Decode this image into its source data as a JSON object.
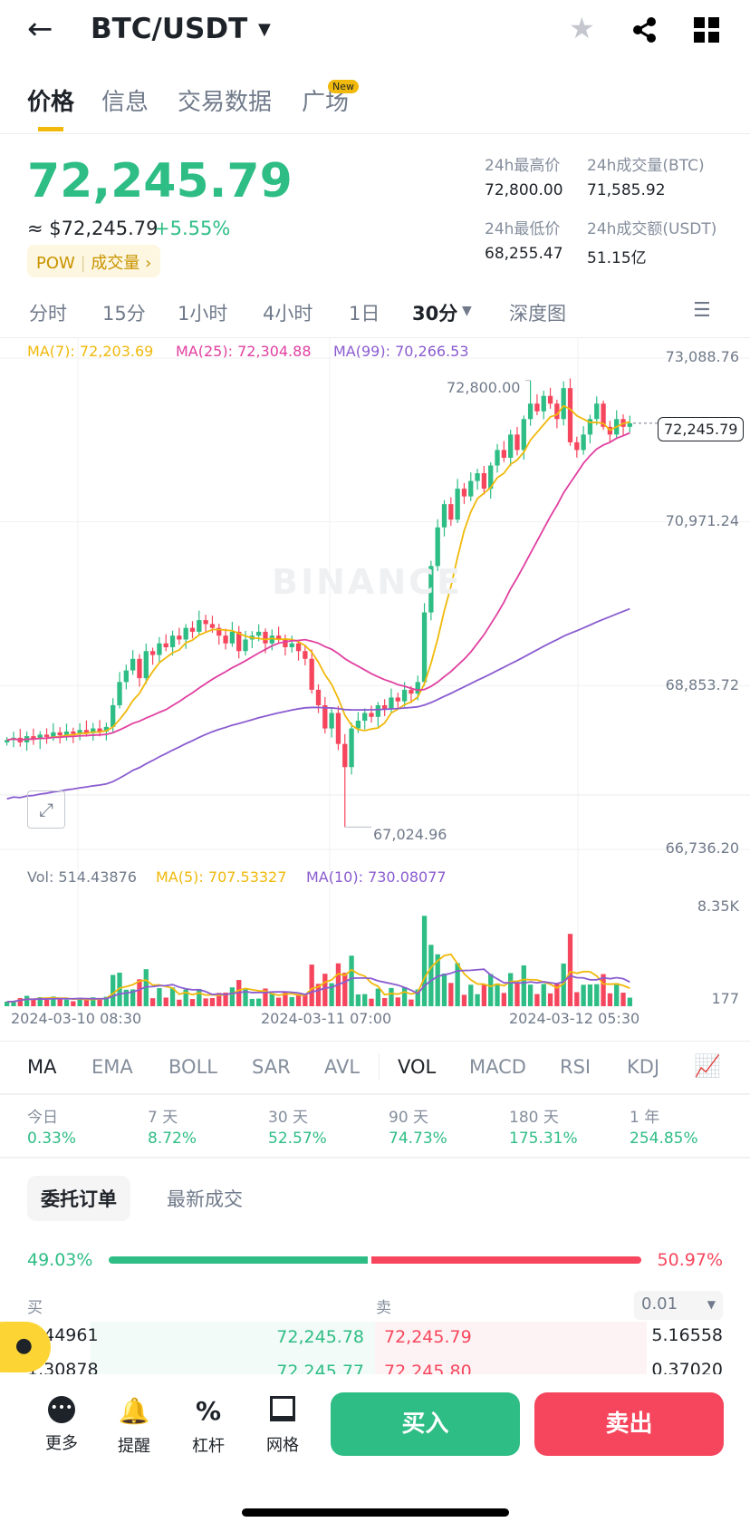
{
  "header": {
    "title": "BTC/USDT"
  },
  "tabs": [
    {
      "label": "价格"
    },
    {
      "label": "信息"
    },
    {
      "label": "交易数据"
    },
    {
      "label": "广场",
      "badge": "New"
    }
  ],
  "price": {
    "last": "72,245.79",
    "usd": "≈ $72,245.79",
    "change": "+5.55%",
    "tag1": "POW",
    "tag2": "成交量"
  },
  "stats": {
    "high_label": "24h最高价",
    "high": "72,800.00",
    "vol_btc_label": "24h成交量(BTC)",
    "vol_btc": "71,585.92",
    "low_label": "24h最低价",
    "low": "68,255.47",
    "vol_usdt_label": "24h成交额(USDT)",
    "vol_usdt": "51.15亿"
  },
  "timeframes": [
    "分时",
    "15分",
    "1小时",
    "4小时",
    "1日",
    "30分",
    "深度图"
  ],
  "ma_legend": {
    "ma7": "MA(7): 72,203.69",
    "ma25": "MA(25): 72,304.88",
    "ma99": "MA(99): 70,266.53"
  },
  "chart_data": {
    "type": "candlestick",
    "ylim": [
      66736.2,
      73088.76
    ],
    "yticks": [
      "73,088.76",
      "70,971.24",
      "68,853.72",
      "66,736.20"
    ],
    "last_price": "72,245.79",
    "high_label": "72,800.00",
    "low_label": "67,024.96",
    "closes": [
      68150,
      68180,
      68120,
      68200,
      68160,
      68220,
      68190,
      68250,
      68210,
      68260,
      68230,
      68280,
      68240,
      68300,
      68260,
      68320,
      68600,
      68900,
      69050,
      69200,
      68950,
      69300,
      69250,
      69400,
      69350,
      69500,
      69450,
      69600,
      69550,
      69700,
      69650,
      69600,
      69500,
      69400,
      69550,
      69300,
      69450,
      69500,
      69550,
      69400,
      69500,
      69450,
      69350,
      69400,
      69300,
      69200,
      68800,
      68600,
      68300,
      68500,
      68100,
      67800,
      68300,
      68400,
      68500,
      68450,
      68600,
      68550,
      68700,
      68650,
      68800,
      68750,
      68900,
      69800,
      70400,
      70900,
      71200,
      71000,
      71400,
      71300,
      71500,
      71600,
      71400,
      71700,
      71900,
      71800,
      72100,
      71900,
      72300,
      72500,
      72400,
      72600,
      72500,
      72300,
      72700,
      72000,
      71900,
      72100,
      72300,
      72500,
      72200,
      72100,
      72300,
      72200,
      72245.79
    ],
    "xticks": [
      "2024-03-10 08:30",
      "2024-03-11 07:00",
      "2024-03-12 05:30"
    ],
    "colors": {
      "up": "#2ebd85",
      "down": "#f6465d",
      "ma7": "#f0b90b",
      "ma25": "#e040a0",
      "ma99": "#8a5cd0"
    }
  },
  "volume": {
    "vol": "Vol: 514.43876",
    "ma5": "MA(5): 707.53327",
    "ma10": "MA(10): 730.08077",
    "ytop": "8.35K",
    "ybottom": "177"
  },
  "indicators": [
    "MA",
    "EMA",
    "BOLL",
    "SAR",
    "AVL",
    "VOL",
    "MACD",
    "RSI",
    "KDJ"
  ],
  "performance": [
    {
      "label": "今日",
      "value": "0.33%"
    },
    {
      "label": "7 天",
      "value": "8.72%"
    },
    {
      "label": "30 天",
      "value": "52.57%"
    },
    {
      "label": "90 天",
      "value": "74.73%"
    },
    {
      "label": "180 天",
      "value": "175.31%"
    },
    {
      "label": "1 年",
      "value": "254.85%"
    }
  ],
  "orderbook": {
    "tab1": "委托订单",
    "tab2": "最新成交",
    "buy_pct": "49.03%",
    "sell_pct": "50.97%",
    "buy_ratio": 49.03,
    "buy_label": "买",
    "sell_label": "卖",
    "precision": "0.01",
    "rows": [
      {
        "bq": "1.44961",
        "bp": "72,245.78",
        "sp": "72,245.79",
        "sq": "5.16558"
      },
      {
        "bq": "1.30878",
        "bp": "72,245.77",
        "sp": "72,245.80",
        "sq": "0.37020"
      }
    ]
  },
  "bottom": {
    "more": "更多",
    "alert": "提醒",
    "margin": "杠杆",
    "grid": "网格",
    "buy": "买入",
    "sell": "卖出"
  },
  "watermark": "BINANCE"
}
